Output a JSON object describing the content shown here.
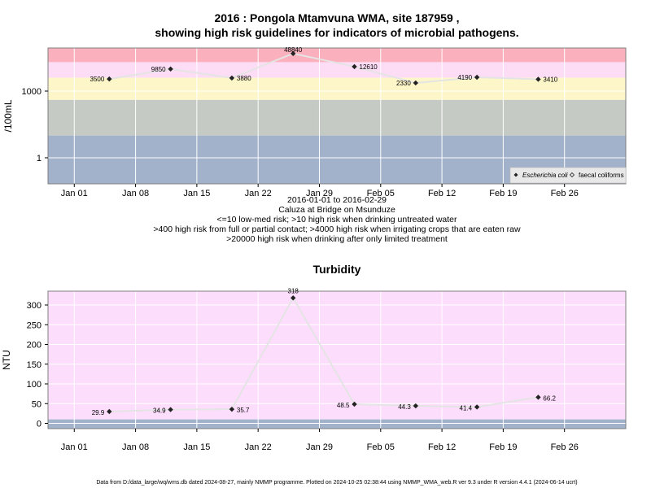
{
  "title_line1": "2016 : Pongola Mtamvuna WMA, site 187959 ,",
  "title_line2": "showing high risk guidelines for indicators of microbial pathogens.",
  "subtitle_lines": [
    "2016-01-01 to 2016-02-29",
    "Caluza at Bridge on Msunduze",
    "<=10 low-med risk; >10 high risk when drinking untreated water",
    ">400 high risk from full or partial contact; >4000 high risk when irrigating crops that are eaten raw",
    ">20000 high risk when drinking after only limited treatment"
  ],
  "turbidity_title": "Turbidity",
  "footer": "Data from D:/data_large/wq/wms.db dated 2024-08-27, mainly NMMP programme. Plotted on 2024-10-25 02:38:44 using NMMP_WMA_web.R ver 9.3 under R version 4.4.1 (2024-06-14 ucrt)",
  "legend": {
    "ecoli": "Escherichia coli",
    "faecal": "faecal coliforms"
  },
  "colors": {
    "band_red": "#fbb1bd",
    "band_pink": "#fdddf5",
    "band_yellow": "#fdf6c9",
    "band_grey": "#c5cbc4",
    "band_blue": "#a2b2cb",
    "turb_bg": "#fdddfc",
    "line": "#e4e4e4",
    "grid": "#ffffff",
    "point": "#222222"
  },
  "chart_data": [
    {
      "type": "line",
      "title": "",
      "xlabel": "",
      "ylabel": "/100mL",
      "y_scale": "log",
      "y_ticks": [
        1,
        1000
      ],
      "x_ticks": [
        "Jan 01",
        "Jan 08",
        "Jan 15",
        "Jan 22",
        "Jan 29",
        "Feb 05",
        "Feb 12",
        "Feb 19",
        "Feb 26"
      ],
      "x_tick_dates": [
        "2016-01-01",
        "2016-01-08",
        "2016-01-15",
        "2016-01-22",
        "2016-01-29",
        "2016-02-05",
        "2016-02-12",
        "2016-02-19",
        "2016-02-26"
      ],
      "xlim": [
        "2015-12-29",
        "2016-03-04"
      ],
      "grid": true,
      "legend_position": "bottom-right",
      "risk_thresholds": [
        10,
        400,
        4000,
        20000
      ],
      "series": [
        {
          "name": "Escherichia coli",
          "x": [
            "2016-01-05",
            "2016-01-12",
            "2016-01-19",
            "2016-01-26",
            "2016-02-02",
            "2016-02-09",
            "2016-02-16",
            "2016-02-23"
          ],
          "values": [
            3500,
            9850,
            3880,
            48840,
            12610,
            2330,
            4190,
            3410
          ],
          "labels": [
            "3500",
            "9850",
            "3880",
            "48840",
            "12610",
            "2330",
            "4190",
            "3410"
          ]
        }
      ]
    },
    {
      "type": "line",
      "title": "Turbidity",
      "xlabel": "",
      "ylabel": "NTU",
      "y_ticks": [
        0,
        50,
        100,
        150,
        200,
        250,
        300
      ],
      "x_ticks": [
        "Jan 01",
        "Jan 08",
        "Jan 15",
        "Jan 22",
        "Jan 29",
        "Feb 05",
        "Feb 12",
        "Feb 19",
        "Feb 26"
      ],
      "x_tick_dates": [
        "2016-01-01",
        "2016-01-08",
        "2016-01-15",
        "2016-01-22",
        "2016-01-29",
        "2016-02-05",
        "2016-02-12",
        "2016-02-19",
        "2016-02-26"
      ],
      "xlim": [
        "2015-12-29",
        "2016-03-04"
      ],
      "grid": true,
      "series": [
        {
          "name": "Turbidity",
          "x": [
            "2016-01-05",
            "2016-01-12",
            "2016-01-19",
            "2016-01-26",
            "2016-02-02",
            "2016-02-09",
            "2016-02-16",
            "2016-02-23"
          ],
          "values": [
            29.9,
            34.9,
            35.7,
            318,
            48.5,
            44.3,
            41.4,
            66.2
          ],
          "labels": [
            "29.9",
            "34.9",
            "35.7",
            "318",
            "48.5",
            "44.3",
            "41.4",
            "66.2"
          ]
        }
      ]
    }
  ]
}
